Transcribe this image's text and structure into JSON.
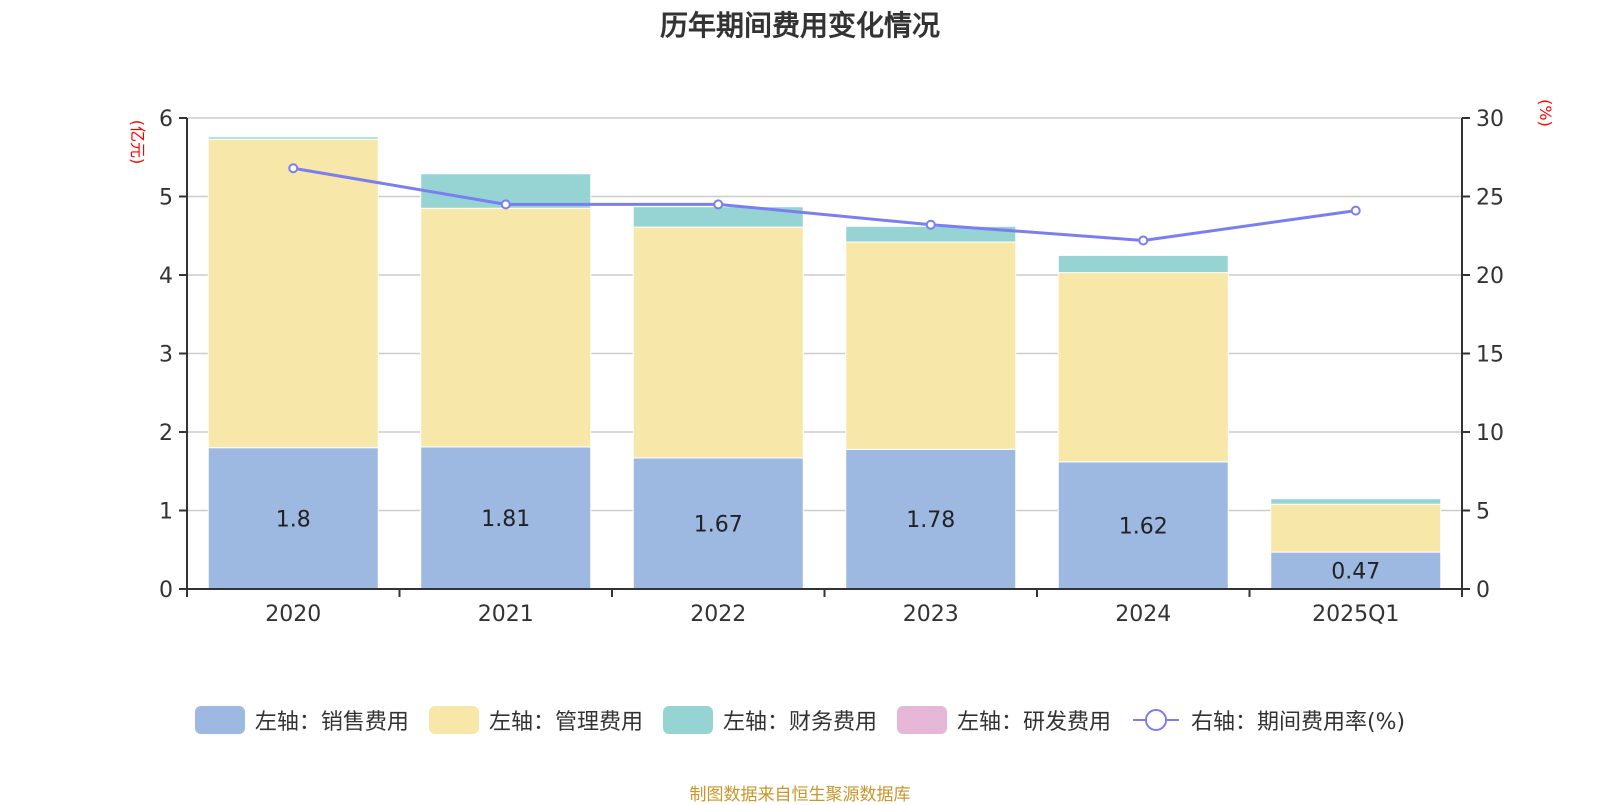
{
  "colors": {
    "sales": "#9db8e1",
    "admin": "#f7e7a8",
    "finance": "#96d3d3",
    "rnd": "#e6b7d6",
    "rate": "#7b7ef0",
    "unit_label": "#ff0000",
    "footer": "#c8962a"
  },
  "chart_data": {
    "type": "bar",
    "title": "历年期间费用变化情况",
    "categories": [
      "2020",
      "2021",
      "2022",
      "2023",
      "2024",
      "2025Q1"
    ],
    "left_axis": {
      "label": "(亿元)",
      "ylim": [
        0,
        6
      ],
      "ticks": [
        "0",
        "1",
        "2",
        "3",
        "4",
        "5",
        "6"
      ]
    },
    "right_axis": {
      "label": "(%)",
      "ylim": [
        0,
        30
      ],
      "ticks": [
        "0",
        "5",
        "10",
        "15",
        "20",
        "25",
        "30"
      ]
    },
    "grid": true,
    "legend_position": "bottom",
    "series": [
      {
        "name": "左轴：销售费用",
        "axis": "left",
        "type": "bar",
        "values": [
          1.8,
          1.81,
          1.67,
          1.78,
          1.62,
          0.47
        ],
        "labels": [
          "1.8",
          "1.81",
          "1.67",
          "1.78",
          "1.62",
          "0.47"
        ]
      },
      {
        "name": "左轴：管理费用",
        "axis": "left",
        "type": "bar",
        "values": [
          3.93,
          3.04,
          2.94,
          2.64,
          2.41,
          0.61
        ]
      },
      {
        "name": "左轴：财务费用",
        "axis": "left",
        "type": "bar",
        "values": [
          0.03,
          0.44,
          0.26,
          0.2,
          0.22,
          0.07
        ]
      },
      {
        "name": "左轴：研发费用",
        "axis": "left",
        "type": "bar",
        "values": [
          0,
          0,
          0,
          0,
          0,
          0
        ]
      },
      {
        "name": "右轴：期间费用率(%)",
        "axis": "right",
        "type": "line",
        "values": [
          26.8,
          24.5,
          24.5,
          23.2,
          22.2,
          24.1
        ]
      }
    ]
  },
  "footer": "制图数据来自恒生聚源数据库"
}
